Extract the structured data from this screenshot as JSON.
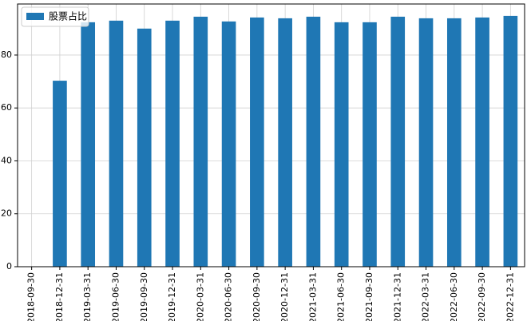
{
  "chart_data": {
    "type": "bar",
    "categories": [
      "2018-09-30",
      "2018-12-31",
      "2019-03-31",
      "2019-06-30",
      "2019-09-30",
      "2019-12-31",
      "2020-03-31",
      "2020-06-30",
      "2020-09-30",
      "2020-12-31",
      "2021-03-31",
      "2021-06-30",
      "2021-09-30",
      "2021-12-31",
      "2022-03-31",
      "2022-06-30",
      "2022-09-30",
      "2022-12-31"
    ],
    "series": [
      {
        "name": "股票占比",
        "color": "#1f77b4",
        "values": [
          null,
          70.3,
          92.4,
          93.0,
          90.0,
          93.0,
          94.5,
          92.7,
          94.2,
          93.9,
          94.5,
          92.4,
          92.4,
          94.5,
          93.9,
          93.9,
          94.2,
          94.8
        ]
      }
    ],
    "ylim": [
      0,
      99.3
    ],
    "yticks": [
      0,
      20,
      40,
      60,
      80
    ],
    "grid": true,
    "legend": "upper-left"
  }
}
